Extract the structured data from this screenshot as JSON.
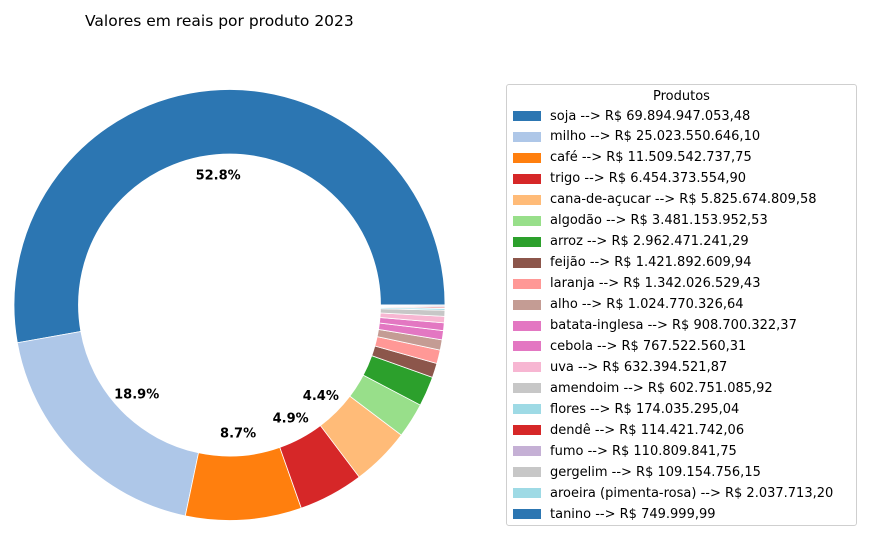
{
  "chart_data": {
    "type": "pie",
    "donut": true,
    "title": "Valores em reais por produto 2023",
    "legend_title": "Produtos",
    "legend_position": "right",
    "slices": [
      {
        "name": "soja",
        "value": 69894947053.48,
        "label": "soja --> R$ 69.894.947.053,48",
        "pct_label": "52.8%",
        "color": "#2c76b2"
      },
      {
        "name": "milho",
        "value": 25023550646.1,
        "label": "milho --> R$ 25.023.550.646,10",
        "pct_label": "18.9%",
        "color": "#aec7e8"
      },
      {
        "name": "café",
        "value": 11509542737.75,
        "label": "café --> R$ 11.509.542.737,75",
        "pct_label": "8.7%",
        "color": "#ff7f0e"
      },
      {
        "name": "trigo",
        "value": 6454373554.9,
        "label": "trigo --> R$ 6.454.373.554,90",
        "pct_label": "4.9%",
        "color": "#d62728"
      },
      {
        "name": "cana-de-açucar",
        "value": 5825674809.58,
        "label": "cana-de-açucar --> R$ 5.825.674.809,58",
        "pct_label": "4.4%",
        "color": "#ffbb78"
      },
      {
        "name": "algodão",
        "value": 3481153952.53,
        "label": "algodão --> R$ 3.481.153.952,53",
        "pct_label": "",
        "color": "#98df8a"
      },
      {
        "name": "arroz",
        "value": 2962471241.29,
        "label": "arroz --> R$ 2.962.471.241,29",
        "pct_label": "",
        "color": "#2ca02c"
      },
      {
        "name": "feijão",
        "value": 1421892609.94,
        "label": "feijão --> R$ 1.421.892.609,94",
        "pct_label": "",
        "color": "#8c564b"
      },
      {
        "name": "laranja",
        "value": 1342026529.43,
        "label": "laranja --> R$ 1.342.026.529,43",
        "pct_label": "",
        "color": "#ff9896"
      },
      {
        "name": "alho",
        "value": 1024770326.64,
        "label": "alho --> R$ 1.024.770.326,64",
        "pct_label": "",
        "color": "#c49c94"
      },
      {
        "name": "batata-inglesa",
        "value": 908700322.37,
        "label": "batata-inglesa --> R$ 908.700.322,37",
        "pct_label": "",
        "color": "#e377c2"
      },
      {
        "name": "cebola",
        "value": 767522560.31,
        "label": "cebola --> R$ 767.522.560,31",
        "pct_label": "",
        "color": "#e377c2"
      },
      {
        "name": "uva",
        "value": 632394521.87,
        "label": "uva --> R$ 632.394.521,87",
        "pct_label": "",
        "color": "#f7b6d2"
      },
      {
        "name": "amendoim",
        "value": 602751085.92,
        "label": "amendoim --> R$ 602.751.085,92",
        "pct_label": "",
        "color": "#c7c7c7"
      },
      {
        "name": "flores",
        "value": 174035295.04,
        "label": "flores --> R$ 174.035.295,04",
        "pct_label": "",
        "color": "#9edae5"
      },
      {
        "name": "dendê",
        "value": 114421742.06,
        "label": "dendê --> R$ 114.421.742,06",
        "pct_label": "",
        "color": "#d62728"
      },
      {
        "name": "fumo",
        "value": 110809841.75,
        "label": "fumo --> R$ 110.809.841,75",
        "pct_label": "",
        "color": "#c5b0d5"
      },
      {
        "name": "gergelim",
        "value": 109154756.15,
        "label": "gergelim --> R$ 109.154.756,15",
        "pct_label": "",
        "color": "#c7c7c7"
      },
      {
        "name": "aroeira (pimenta-rosa)",
        "value": 2037713.2,
        "label": "aroeira (pimenta-rosa) --> R$ 2.037.713,20",
        "pct_label": "",
        "color": "#9edae5"
      },
      {
        "name": "tanino",
        "value": 749999.99,
        "label": "tanino --> R$ 749.999,99",
        "pct_label": "",
        "color": "#2c76b2"
      }
    ]
  }
}
